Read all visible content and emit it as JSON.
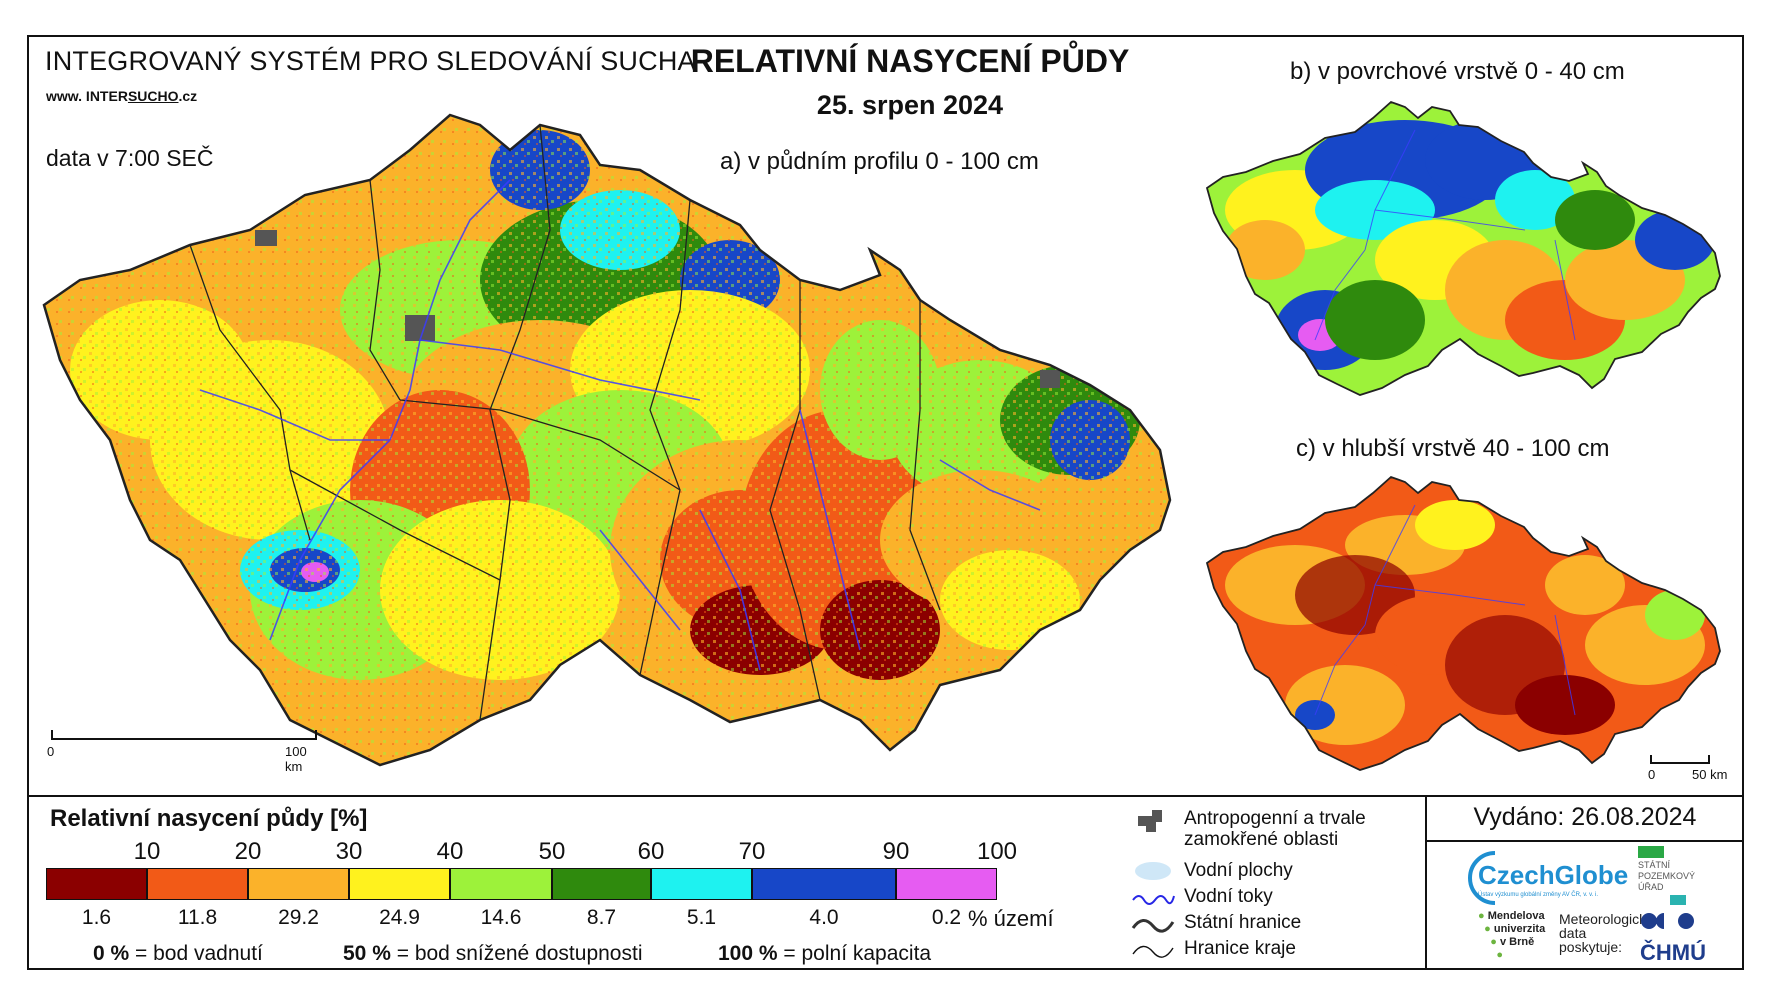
{
  "header": {
    "system_name": "INTEGROVANÝ SYSTÉM PRO SLEDOVÁNÍ SUCHA",
    "url_prefix": "www. INTER",
    "url_mid": "SUCHO",
    "url_suffix": ".cz",
    "data_time": "data v 7:00 SEČ",
    "title": "RELATIVNÍ NASYCENÍ PŮDY",
    "date": "25. srpen 2024"
  },
  "maps": {
    "a_label": "a) v půdním profilu 0 - 100 cm",
    "b_label": "b) v povrchové vrstvě 0 - 40 cm",
    "c_label": "c) v hlubší vrstvě 40 - 100 cm",
    "scale_main": {
      "start": "0",
      "end": "100 km"
    },
    "scale_small": {
      "start": "0",
      "end": "50 km"
    }
  },
  "legend": {
    "title": "Relativní nasycení půdy [%]",
    "ticks": [
      "10",
      "20",
      "30",
      "40",
      "50",
      "60",
      "70",
      "90",
      "100"
    ],
    "classes": [
      {
        "color": "#8b0000",
        "share": "1.6"
      },
      {
        "color": "#f25a17",
        "share": "11.8"
      },
      {
        "color": "#fbb22a",
        "share": "29.2"
      },
      {
        "color": "#fff21e",
        "share": "24.9"
      },
      {
        "color": "#9df23a",
        "share": "14.6"
      },
      {
        "color": "#2f8a0d",
        "share": "8.7"
      },
      {
        "color": "#1ef2f0",
        "share": "5.1"
      },
      {
        "color": "#1747c8",
        "share": "4.0"
      },
      {
        "color": "#e65cf2",
        "share": "0.2"
      }
    ],
    "share_unit": "% území",
    "footnotes": [
      {
        "value": "0 %",
        "text": "= bod vadnutí"
      },
      {
        "value": "50 %",
        "text": "= bod snížené dostupnosti"
      },
      {
        "value": "100 %",
        "text": "= polní kapacita"
      }
    ]
  },
  "symbols": {
    "anthropogenic_1": "Antropogenní a trvale",
    "anthropogenic_2": "zamokřené oblasti",
    "water_bodies": "Vodní plochy",
    "rivers": "Vodní toky",
    "state_border": "Státní hranice",
    "region_border": "Hranice kraje"
  },
  "issued": "Vydáno: 26.08.2024",
  "logos": {
    "czechglobe": "CzechGlobe",
    "czechglobe_sub": "Ústav výzkumu globální změny AV ČR, v. v. i.",
    "spu_1": "STÁTNÍ",
    "spu_2": "POZEMKOVÝ",
    "spu_3": "ÚŘAD",
    "mendel_1": "Mendelova",
    "mendel_2": "univerzita",
    "mendel_3": "v Brně",
    "meteo_1": "Meteorologická",
    "meteo_2": "data",
    "meteo_3": "poskytuje:",
    "chmu": "ČHMÚ"
  }
}
